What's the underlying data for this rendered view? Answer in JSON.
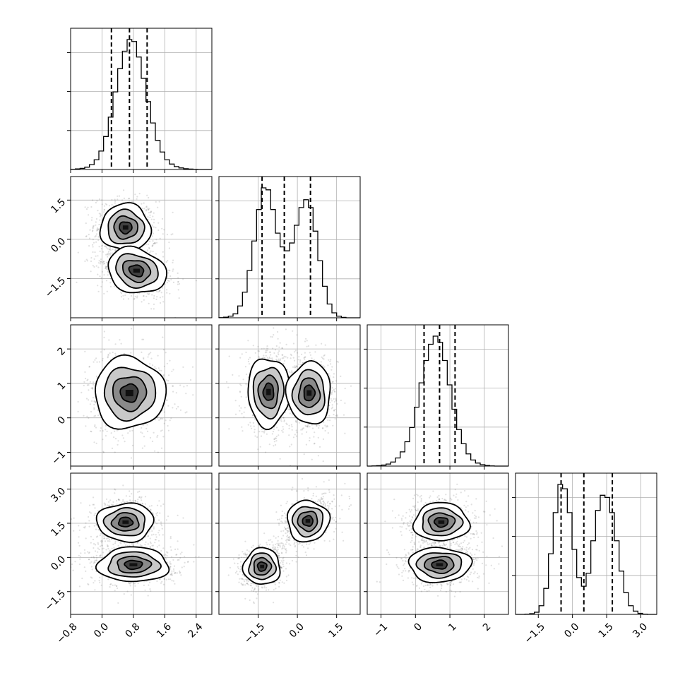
{
  "chart_data": {
    "type": "corner",
    "title": "",
    "n_params": 4,
    "grid": true,
    "colors": {
      "line": "#000000",
      "grid": "#b0b0b0",
      "points": "#555555"
    },
    "params": [
      {
        "lim": [
          -0.8,
          2.8
        ],
        "ticks": [
          -0.8,
          0.0,
          0.8,
          1.6,
          2.4
        ],
        "tick_labels": [
          "−0.8",
          "0.0",
          "0.8",
          "1.6",
          "2.4"
        ]
      },
      {
        "lim": [
          -3.0,
          2.4
        ],
        "ticks": [
          -1.5,
          0.0,
          1.5
        ],
        "tick_labels": [
          "−1.5",
          "0.0",
          "1.5"
        ]
      },
      {
        "lim": [
          -1.4,
          2.7
        ],
        "ticks": [
          -1,
          0,
          1,
          2
        ],
        "tick_labels": [
          "−1",
          "0",
          "1",
          "2"
        ]
      },
      {
        "lim": [
          -2.5,
          3.7
        ],
        "ticks": [
          -1.5,
          0.0,
          1.5,
          3.0
        ],
        "tick_labels": [
          "−1.5",
          "0.0",
          "1.5",
          "3.0"
        ]
      }
    ],
    "quantiles": [
      [
        0.24,
        0.7,
        1.15
      ],
      [
        -1.35,
        -0.5,
        0.5
      ],
      [
        0.25,
        0.7,
        1.15
      ],
      [
        -0.5,
        0.5,
        1.75
      ]
    ],
    "histograms": [
      {
        "bins": [
          -0.8,
          2.8
        ],
        "counts": [
          1,
          3,
          6,
          12,
          25,
          50,
          95,
          170,
          270,
          400,
          520,
          610,
          670,
          660,
          580,
          470,
          350,
          240,
          150,
          90,
          50,
          28,
          15,
          8,
          4,
          2,
          1,
          0,
          0,
          0
        ]
      },
      {
        "bins": [
          -3.0,
          2.4
        ],
        "counts": [
          1,
          3,
          8,
          20,
          60,
          130,
          240,
          390,
          550,
          660,
          650,
          550,
          430,
          360,
          340,
          380,
          470,
          560,
          600,
          560,
          440,
          290,
          160,
          70,
          25,
          8,
          2,
          0,
          0,
          0
        ]
      },
      {
        "bins": [
          -1.4,
          2.7
        ],
        "counts": [
          0,
          1,
          2,
          5,
          10,
          20,
          40,
          70,
          120,
          190,
          290,
          410,
          520,
          600,
          640,
          610,
          520,
          400,
          280,
          180,
          110,
          60,
          30,
          15,
          7,
          3,
          1,
          0,
          0,
          0
        ]
      },
      {
        "bins": [
          -2.5,
          3.7
        ],
        "counts": [
          0,
          0,
          1,
          3,
          10,
          40,
          120,
          280,
          470,
          600,
          580,
          470,
          300,
          170,
          130,
          190,
          340,
          480,
          550,
          540,
          470,
          340,
          200,
          100,
          40,
          15,
          5,
          1,
          0,
          0
        ]
      }
    ],
    "pair_modes": [
      {
        "row": 1,
        "col": 0,
        "modes": [
          [
            0.6,
            0.45,
            0.32,
            0.45,
            -0.1
          ],
          [
            0.88,
            -1.2,
            0.38,
            0.42,
            -0.35
          ]
        ]
      },
      {
        "row": 2,
        "col": 0,
        "modes": [
          [
            0.7,
            0.72,
            0.45,
            0.52,
            0.0
          ]
        ]
      },
      {
        "row": 2,
        "col": 1,
        "modes": [
          [
            -1.1,
            0.75,
            0.4,
            0.5,
            0.0
          ],
          [
            0.45,
            0.72,
            0.42,
            0.45,
            0.0
          ]
        ]
      },
      {
        "row": 3,
        "col": 0,
        "modes": [
          [
            0.6,
            1.55,
            0.36,
            0.42,
            0.0
          ],
          [
            0.8,
            -0.32,
            0.45,
            0.38,
            0.0
          ]
        ]
      },
      {
        "row": 3,
        "col": 1,
        "modes": [
          [
            -1.35,
            -0.4,
            0.35,
            0.4,
            0.2
          ],
          [
            0.4,
            1.6,
            0.4,
            0.45,
            0.4
          ]
        ]
      },
      {
        "row": 3,
        "col": 2,
        "modes": [
          [
            0.75,
            1.55,
            0.4,
            0.42,
            0.0
          ],
          [
            0.7,
            -0.32,
            0.45,
            0.38,
            0.0
          ]
        ]
      }
    ]
  }
}
